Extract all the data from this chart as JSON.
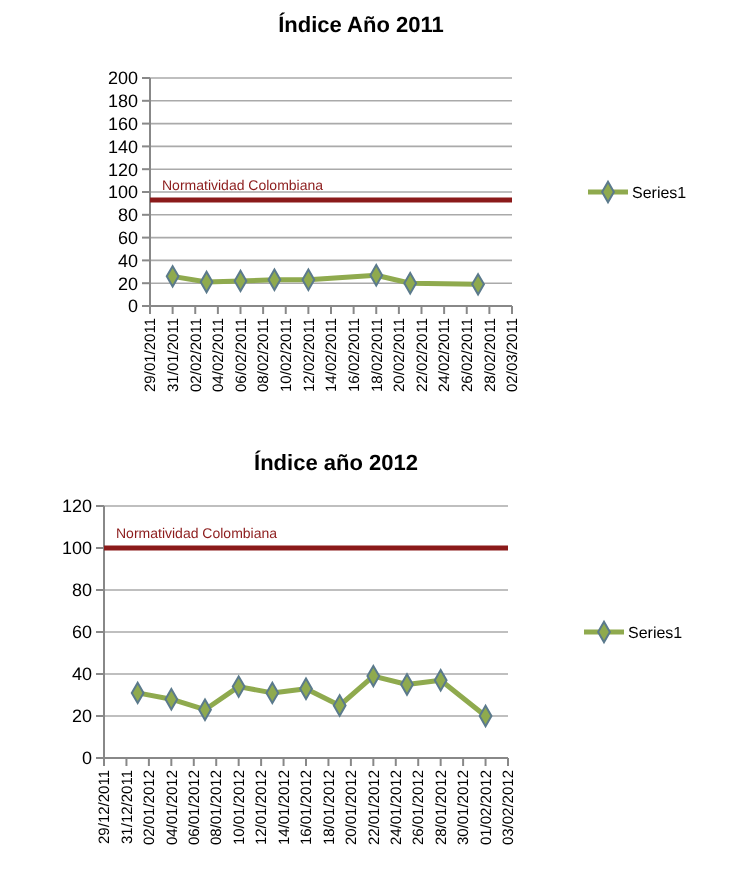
{
  "chart_data": [
    {
      "type": "line",
      "title": "Índice Año 2011",
      "x": [
        "2011-01-31",
        "2011-02-03",
        "2011-02-06",
        "2011-02-09",
        "2011-02-12",
        "2011-02-18",
        "2011-02-21",
        "2011-02-27"
      ],
      "series": [
        {
          "name": "Series1",
          "color": "#8faa4e",
          "values": [
            26,
            21,
            22,
            23,
            23,
            27,
            20,
            19
          ]
        }
      ],
      "xlim": [
        "2011-01-29",
        "2011-03-02"
      ],
      "xticks": [
        {
          "value": "2011-01-29",
          "label": "29/01/2011"
        },
        {
          "value": "2011-01-31",
          "label": "31/01/2011"
        },
        {
          "value": "2011-02-02",
          "label": "02/02/2011"
        },
        {
          "value": "2011-02-04",
          "label": "04/02/2011"
        },
        {
          "value": "2011-02-06",
          "label": "06/02/2011"
        },
        {
          "value": "2011-02-08",
          "label": "08/02/2011"
        },
        {
          "value": "2011-02-10",
          "label": "10/02/2011"
        },
        {
          "value": "2011-02-12",
          "label": "12/02/2011"
        },
        {
          "value": "2011-02-14",
          "label": "14/02/2011"
        },
        {
          "value": "2011-02-16",
          "label": "16/02/2011"
        },
        {
          "value": "2011-02-18",
          "label": "18/02/2011"
        },
        {
          "value": "2011-02-20",
          "label": "20/02/2011"
        },
        {
          "value": "2011-02-22",
          "label": "22/02/2011"
        },
        {
          "value": "2011-02-24",
          "label": "24/02/2011"
        },
        {
          "value": "2011-02-26",
          "label": "26/02/2011"
        },
        {
          "value": "2011-02-28",
          "label": "28/02/2011"
        },
        {
          "value": "2011-03-02",
          "label": "02/03/2011"
        }
      ],
      "ylim": [
        0,
        200
      ],
      "yticks": [
        0,
        20,
        40,
        60,
        80,
        100,
        120,
        140,
        160,
        180,
        200
      ],
      "ref_lines": [
        {
          "axis": "y",
          "value": 93,
          "label": "Normatividad Colombiana",
          "color": "#8b1a1a"
        }
      ],
      "grid": "y",
      "legend": "right",
      "marker": "diamond",
      "line_style": "solid"
    },
    {
      "type": "line",
      "title": "Índice año 2012",
      "x": [
        "2012-01-01",
        "2012-01-04",
        "2012-01-07",
        "2012-01-10",
        "2012-01-13",
        "2012-01-16",
        "2012-01-19",
        "2012-01-22",
        "2012-01-25",
        "2012-01-28",
        "2012-02-01"
      ],
      "series": [
        {
          "name": "Series1",
          "color": "#8faa4e",
          "values": [
            31,
            28,
            23,
            34,
            31,
            33,
            25,
            39,
            35,
            37,
            20
          ]
        }
      ],
      "xlim": [
        "2011-12-29",
        "2012-02-03"
      ],
      "xticks": [
        {
          "value": "2011-12-29",
          "label": "29/12/2011"
        },
        {
          "value": "2011-12-31",
          "label": "31/12/2011"
        },
        {
          "value": "2012-01-02",
          "label": "02/01/2012"
        },
        {
          "value": "2012-01-04",
          "label": "04/01/2012"
        },
        {
          "value": "2012-01-06",
          "label": "06/01/2012"
        },
        {
          "value": "2012-01-08",
          "label": "08/01/2012"
        },
        {
          "value": "2012-01-10",
          "label": "10/01/2012"
        },
        {
          "value": "2012-01-12",
          "label": "12/01/2012"
        },
        {
          "value": "2012-01-14",
          "label": "14/01/2012"
        },
        {
          "value": "2012-01-16",
          "label": "16/01/2012"
        },
        {
          "value": "2012-01-18",
          "label": "18/01/2012"
        },
        {
          "value": "2012-01-20",
          "label": "20/01/2012"
        },
        {
          "value": "2012-01-22",
          "label": "22/01/2012"
        },
        {
          "value": "2012-01-24",
          "label": "24/01/2012"
        },
        {
          "value": "2012-01-26",
          "label": "26/01/2012"
        },
        {
          "value": "2012-01-28",
          "label": "28/01/2012"
        },
        {
          "value": "2012-01-30",
          "label": "30/01/2012"
        },
        {
          "value": "2012-02-01",
          "label": "01/02/2012"
        },
        {
          "value": "2012-02-03",
          "label": "03/02/2012"
        }
      ],
      "ylim": [
        0,
        120
      ],
      "yticks": [
        0,
        20,
        40,
        60,
        80,
        100,
        120
      ],
      "ref_lines": [
        {
          "axis": "y",
          "value": 100,
          "label": "Normatividad Colombiana",
          "color": "#8b1a1a"
        }
      ],
      "grid": "y",
      "legend": "right",
      "marker": "diamond",
      "line_style": "solid"
    }
  ]
}
